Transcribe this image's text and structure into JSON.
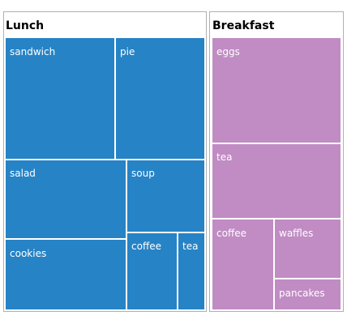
{
  "chart_data": {
    "type": "treemap",
    "title": "",
    "groups": [
      {
        "name": "Lunch",
        "color": "#2683c6",
        "items": [
          {
            "label": "sandwich"
          },
          {
            "label": "pie"
          },
          {
            "label": "salad"
          },
          {
            "label": "soup"
          },
          {
            "label": "cookies"
          },
          {
            "label": "coffee"
          },
          {
            "label": "tea"
          }
        ]
      },
      {
        "name": "Breakfast",
        "color": "#c08cc3",
        "items": [
          {
            "label": "eggs"
          },
          {
            "label": "tea"
          },
          {
            "label": "coffee"
          },
          {
            "label": "waffles"
          },
          {
            "label": "pancakes"
          }
        ]
      }
    ]
  }
}
